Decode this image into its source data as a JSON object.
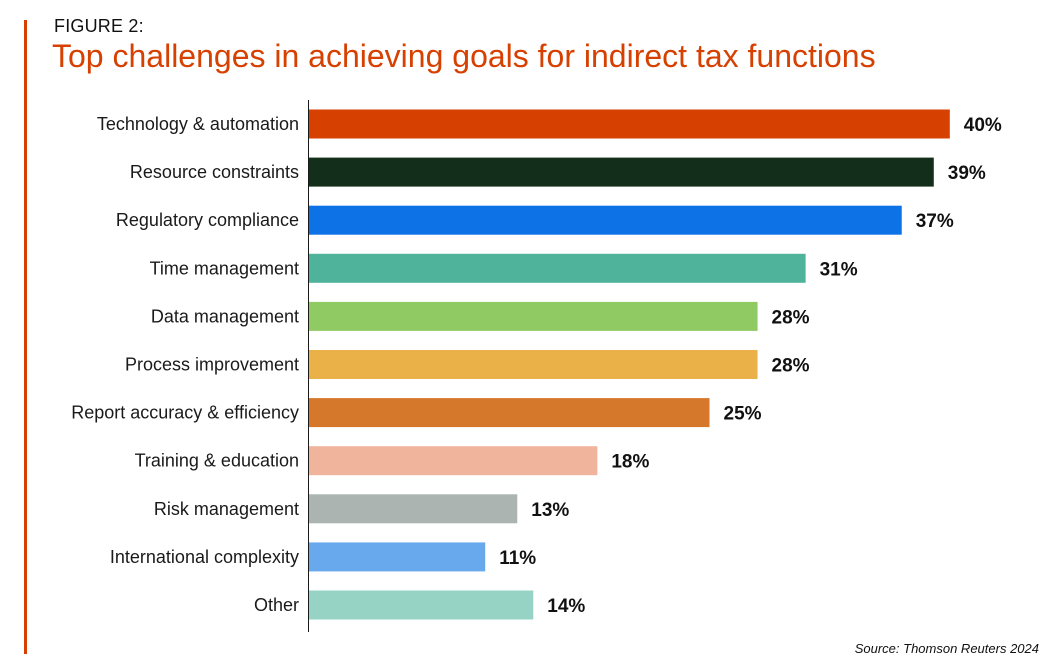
{
  "figure_label": "FIGURE 2:",
  "chart_data": {
    "type": "bar",
    "orientation": "horizontal",
    "title": "Top challenges in achieving goals for indirect tax functions",
    "categories": [
      "Technology & automation",
      "Resource constraints",
      "Regulatory compliance",
      "Time management",
      "Data management",
      "Process improvement",
      "Report accuracy & efficiency",
      "Training & education",
      "Risk management",
      "International complexity",
      "Other"
    ],
    "values": [
      40,
      39,
      37,
      31,
      28,
      28,
      25,
      18,
      13,
      11,
      14
    ],
    "value_labels": [
      "40%",
      "39%",
      "37%",
      "31%",
      "28%",
      "28%",
      "25%",
      "18%",
      "13%",
      "11%",
      "14%"
    ],
    "colors": [
      "#d64000",
      "#132e1a",
      "#0d72e6",
      "#4eb39a",
      "#8fcb62",
      "#e9b147",
      "#d6782c",
      "#f0b49d",
      "#abb4b0",
      "#68a9ee",
      "#96d3c4"
    ],
    "xlim": [
      0,
      40
    ],
    "unit": "%",
    "xlabel": "",
    "ylabel": "",
    "grid": false
  },
  "source": "Source: Thomson Reuters 2024"
}
